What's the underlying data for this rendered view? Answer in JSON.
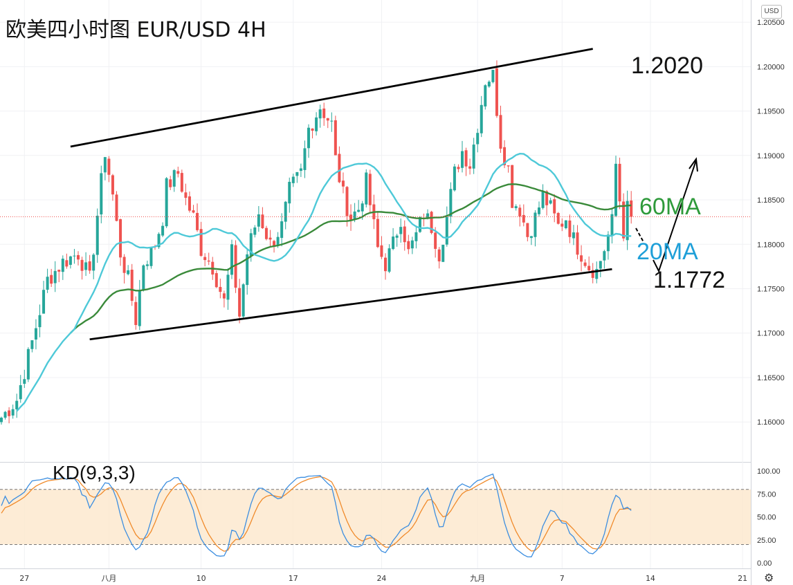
{
  "title": "欧美四小时图 EUR/USD 4H",
  "currency_badge": "USD",
  "settings_icon": "gear-icon",
  "chart_data": {
    "type": "candlestick",
    "price_axis": {
      "ticks": [
        "1.20500",
        "1.20000",
        "1.19500",
        "1.19000",
        "1.18500",
        "1.18000",
        "1.17500",
        "1.17000",
        "1.16500",
        "1.16000"
      ],
      "range": [
        1.1555,
        1.2075
      ]
    },
    "kd_axis": {
      "ticks": [
        "100.00",
        "75.00",
        "50.00",
        "25.00",
        "0.00"
      ],
      "overbought": 80,
      "oversold": 20
    },
    "x_ticks": [
      "27",
      "八月",
      "10",
      "17",
      "24",
      "九月",
      "7",
      "14",
      "21"
    ],
    "x_tick_index": [
      6,
      28,
      52,
      76,
      99,
      124,
      146,
      169,
      193
    ],
    "candle_count": 165,
    "current_price": 1.1831,
    "anchors": [
      [
        0,
        1.1605
      ],
      [
        4,
        1.1625
      ],
      [
        8,
        1.169
      ],
      [
        12,
        1.176
      ],
      [
        16,
        1.178
      ],
      [
        20,
        1.179
      ],
      [
        23,
        1.176
      ],
      [
        26,
        1.187
      ],
      [
        27,
        1.1905
      ],
      [
        29,
        1.1855
      ],
      [
        31,
        1.179
      ],
      [
        33,
        1.176
      ],
      [
        35,
        1.1715
      ],
      [
        37,
        1.178
      ],
      [
        39,
        1.179
      ],
      [
        40,
        1.18
      ],
      [
        42,
        1.183
      ],
      [
        43,
        1.1865
      ],
      [
        46,
        1.188
      ],
      [
        48,
        1.185
      ],
      [
        50,
        1.183
      ],
      [
        52,
        1.1795
      ],
      [
        55,
        1.1775
      ],
      [
        58,
        1.1735
      ],
      [
        60,
        1.179
      ],
      [
        62,
        1.172
      ],
      [
        64,
        1.179
      ],
      [
        67,
        1.1835
      ],
      [
        70,
        1.18
      ],
      [
        73,
        1.182
      ],
      [
        75,
        1.186
      ],
      [
        78,
        1.188
      ],
      [
        80,
        1.193
      ],
      [
        83,
        1.1955
      ],
      [
        86,
        1.1935
      ],
      [
        87,
        1.1895
      ],
      [
        89,
        1.1855
      ],
      [
        91,
        1.183
      ],
      [
        93,
        1.184
      ],
      [
        95,
        1.187
      ],
      [
        96,
        1.1845
      ],
      [
        98,
        1.1795
      ],
      [
        100,
        1.1778
      ],
      [
        102,
        1.18
      ],
      [
        104,
        1.183
      ],
      [
        106,
        1.179
      ],
      [
        108,
        1.181
      ],
      [
        110,
        1.1835
      ],
      [
        112,
        1.182
      ],
      [
        114,
        1.179
      ],
      [
        116,
        1.183
      ],
      [
        118,
        1.188
      ],
      [
        120,
        1.1905
      ],
      [
        122,
        1.189
      ],
      [
        124,
        1.1935
      ],
      [
        126,
        1.1985
      ],
      [
        128,
        1.199
      ],
      [
        130,
        1.1915
      ],
      [
        132,
        1.1885
      ],
      [
        133,
        1.185
      ],
      [
        135,
        1.184
      ],
      [
        137,
        1.181
      ],
      [
        139,
        1.183
      ],
      [
        141,
        1.1855
      ],
      [
        143,
        1.184
      ],
      [
        145,
        1.182
      ],
      [
        147,
        1.183
      ],
      [
        149,
        1.1805
      ],
      [
        151,
        1.179
      ],
      [
        153,
        1.1775
      ],
      [
        155,
        1.177
      ],
      [
        157,
        1.1795
      ],
      [
        159,
        1.1825
      ],
      [
        160,
        1.189
      ],
      [
        161,
        1.185
      ],
      [
        162,
        1.1815
      ],
      [
        163,
        1.184
      ],
      [
        164,
        1.1831
      ]
    ],
    "ma20_label": "20MA",
    "ma60_label": "60MA",
    "ma20_color": "#4ec9d8",
    "ma60_color": "#3a8a3a",
    "channel": {
      "upper_start": [
        18,
        1.191
      ],
      "upper_end": [
        154,
        1.202
      ],
      "lower_start": [
        23,
        1.1693
      ],
      "lower_end": [
        159,
        1.1772
      ]
    },
    "annotations": {
      "upper": "1.2020",
      "ma60": "60MA",
      "ma20": "20MA",
      "lower": "1.1772"
    },
    "kd_label": "KD(9,3,3)",
    "kd_k_color": "#3c8ee0",
    "kd_d_color": "#f08a2a",
    "up_color": "#26a69a",
    "down_color": "#ef5350"
  }
}
